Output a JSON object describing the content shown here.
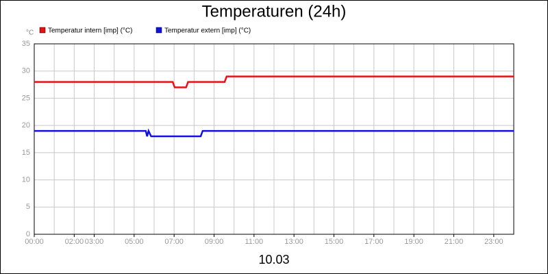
{
  "chart_data": {
    "type": "line",
    "title": "Temperaturen (24h)",
    "y_unit": "°C",
    "xlabel": "10.03",
    "xlim": [
      0,
      24
    ],
    "ylim": [
      0,
      35
    ],
    "yticks": [
      0,
      5,
      10,
      15,
      20,
      25,
      30,
      35
    ],
    "xticks": [
      {
        "value": 0,
        "label": "00:00"
      },
      {
        "value": 2,
        "label": "02:00"
      },
      {
        "value": 3,
        "label": "03:00"
      },
      {
        "value": 5,
        "label": "05:00"
      },
      {
        "value": 7,
        "label": "07:00"
      },
      {
        "value": 9,
        "label": "09:00"
      },
      {
        "value": 11,
        "label": "11:00"
      },
      {
        "value": 13,
        "label": "13:00"
      },
      {
        "value": 15,
        "label": "15:00"
      },
      {
        "value": 17,
        "label": "17:00"
      },
      {
        "value": 19,
        "label": "19:00"
      },
      {
        "value": 21,
        "label": "21:00"
      },
      {
        "value": 23,
        "label": "23:00"
      }
    ],
    "xgrid": [
      1,
      2,
      3,
      4,
      5,
      6,
      7,
      8,
      9,
      10,
      11,
      12,
      13,
      14,
      15,
      16,
      17,
      18,
      19,
      20,
      21,
      22,
      23
    ],
    "grid": true,
    "series": [
      {
        "name": "Temperatur intern [imp] (°C)",
        "color": "#e81010",
        "x": [
          0,
          6.93,
          7.03,
          7.6,
          7.7,
          9.53,
          9.63,
          24
        ],
        "values": [
          28,
          28,
          27,
          27,
          28,
          28,
          29,
          29
        ]
      },
      {
        "name": "Temperatur extern [imp] (°C)",
        "color": "#1010e0",
        "x": [
          0,
          5.58,
          5.65,
          5.72,
          5.85,
          8.33,
          8.43,
          24
        ],
        "values": [
          19,
          19,
          18,
          19,
          18,
          18,
          19,
          19
        ]
      }
    ]
  }
}
